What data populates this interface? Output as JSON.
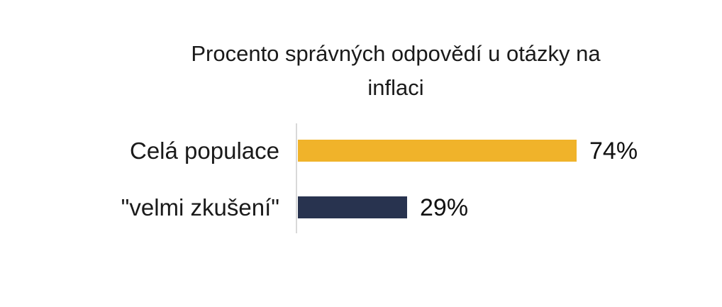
{
  "title": {
    "line1": "Procento správných odpovědí u otázky na",
    "line2": "inflaci"
  },
  "chart_data": {
    "type": "bar",
    "orientation": "horizontal",
    "title": "Procento správných odpovědí u otázky na inflaci",
    "categories": [
      "Celá populace",
      "\"velmi zkušení\""
    ],
    "values": [
      74,
      29
    ],
    "value_labels": [
      "74%",
      "29%"
    ],
    "xlabel": "",
    "ylabel": "",
    "xlim": [
      0,
      100
    ],
    "grid": false,
    "legend": false,
    "bar_colors": [
      "#f0b32a",
      "#28334f"
    ],
    "axis_line_color": "#d9d9d9",
    "text_color": "#1a1a1a",
    "background_color": "#ffffff"
  }
}
